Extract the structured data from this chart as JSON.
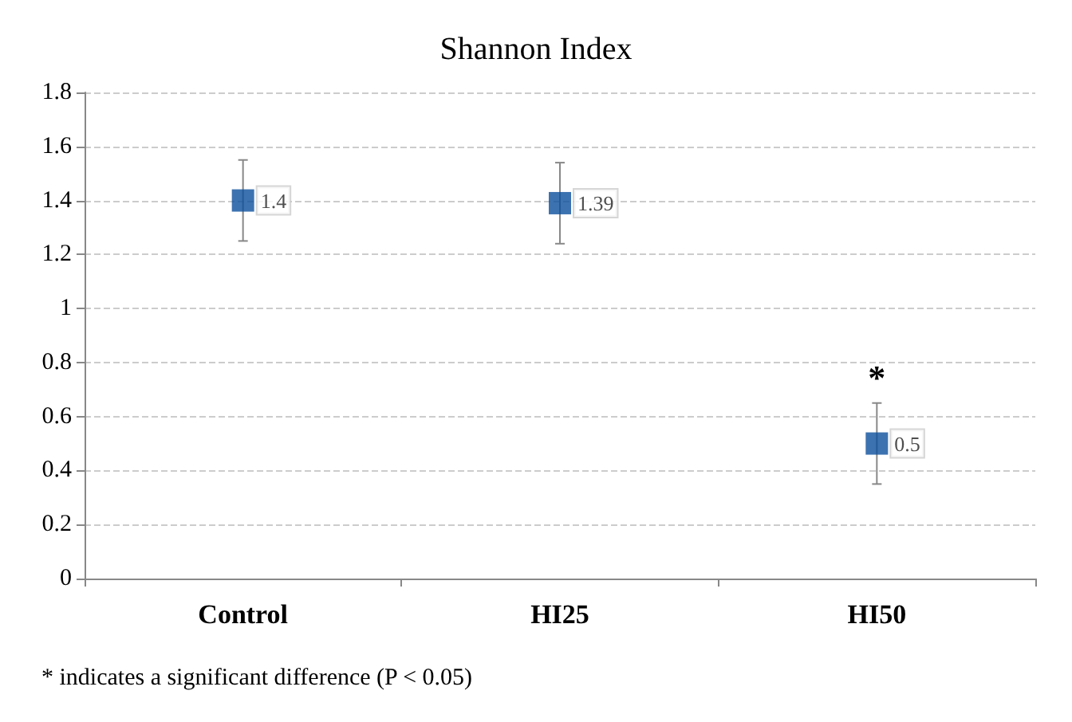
{
  "chart_data": {
    "type": "scatter",
    "title": "Shannon Index",
    "categories": [
      "Control",
      "HI25",
      "HI50"
    ],
    "values": [
      1.4,
      1.39,
      0.5
    ],
    "errors": [
      0.15,
      0.15,
      0.15
    ],
    "color": "#0b4f9c",
    "marker": "square",
    "data_labels": true,
    "ylim": [
      0,
      1.8
    ],
    "yticks": [
      0,
      0.2,
      0.4,
      0.6,
      0.8,
      1,
      1.2,
      1.4,
      1.6,
      1.8
    ],
    "grid": "y",
    "annotations": [
      "*",
      "* indicates a significant difference (P < 0.05)"
    ]
  }
}
